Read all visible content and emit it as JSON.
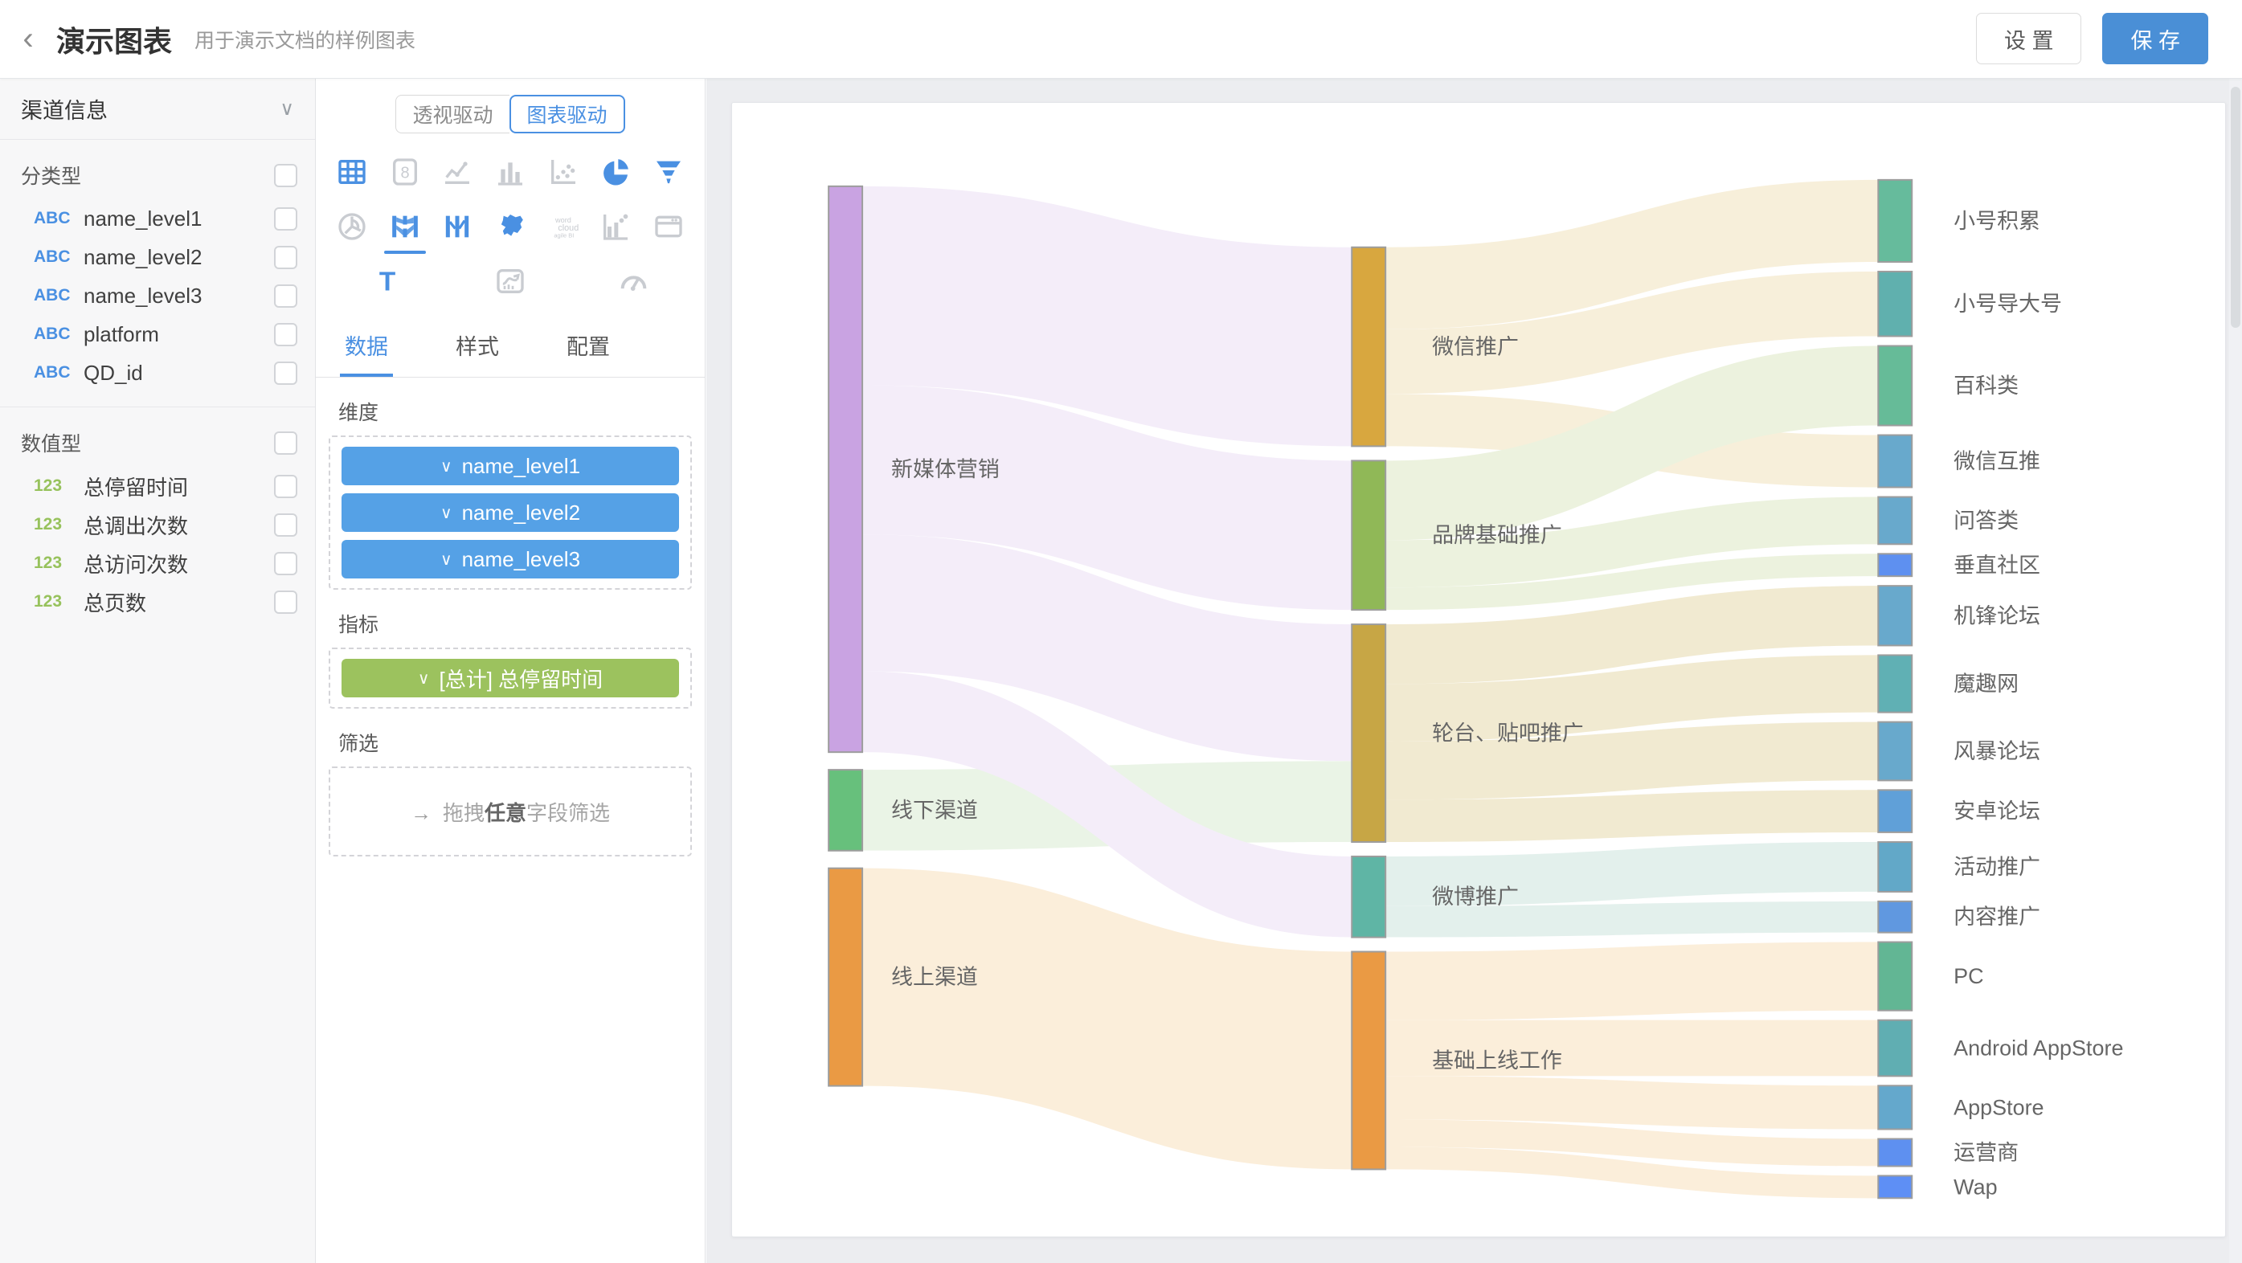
{
  "header": {
    "title": "演示图表",
    "subtitle": "用于演示文档的样例图表",
    "settings_label": "设 置",
    "save_label": "保 存"
  },
  "sidebar": {
    "dataset_name": "渠道信息",
    "sections": [
      {
        "label": "分类型",
        "badge": "ABC",
        "badge_color": "#4a90e2",
        "fields": [
          "name_level1",
          "name_level2",
          "name_level3",
          "platform",
          "QD_id"
        ]
      },
      {
        "label": "数值型",
        "badge": "123",
        "badge_color": "#97c25c",
        "fields": [
          "总停留时间",
          "总调出次数",
          "总访问次数",
          "总页数"
        ]
      }
    ]
  },
  "panel": {
    "mode_toggle": [
      "透视驱动",
      "图表驱动"
    ],
    "active_mode": "图表驱动",
    "chart_icons": [
      {
        "name": "table-icon",
        "active": true
      },
      {
        "name": "kpi-card-icon",
        "active": false
      },
      {
        "name": "line-chart-icon",
        "active": false
      },
      {
        "name": "bar-chart-icon",
        "active": false
      },
      {
        "name": "scatter-icon",
        "active": false
      },
      {
        "name": "pie-chart-icon",
        "active": true
      },
      {
        "name": "funnel-icon",
        "active": true
      },
      {
        "name": "rose-chart-icon",
        "active": false
      },
      {
        "name": "sankey-icon",
        "active": true,
        "selected": true
      },
      {
        "name": "parallel-icon",
        "active": true
      },
      {
        "name": "china-map-icon",
        "active": true
      },
      {
        "name": "word-cloud-icon",
        "active": false
      },
      {
        "name": "combo-chart-icon",
        "active": false
      },
      {
        "name": "web-frame-icon",
        "active": false
      },
      {
        "name": "text-icon",
        "active": true
      },
      {
        "name": "trend-card-icon",
        "active": false
      },
      {
        "name": "gauge-icon",
        "active": false
      }
    ],
    "tabs": [
      "数据",
      "样式",
      "配置"
    ],
    "active_tab": "数据",
    "dimensions": {
      "label": "维度",
      "chips": [
        "name_level1",
        "name_level2",
        "name_level3"
      ]
    },
    "metrics": {
      "label": "指标",
      "chips": [
        "[总计] 总停留时间"
      ]
    },
    "filter": {
      "label": "筛选",
      "arrow": "→",
      "prefix": "拖拽",
      "bold": "任意",
      "suffix": "字段筛选"
    }
  },
  "chart_data": {
    "type": "sankey",
    "metric": "[总计] 总停留时间",
    "levels": [
      "name_level1",
      "name_level2",
      "name_level3"
    ],
    "nodes": [
      {
        "name": "新媒体营销",
        "col": 1,
        "value": 455,
        "color": "#c9a3e2",
        "flow": "#f4edf9"
      },
      {
        "name": "线下渠道",
        "col": 1,
        "value": 65,
        "color": "#67c07c",
        "flow": "#eaf4e6"
      },
      {
        "name": "线上渠道",
        "col": 1,
        "value": 175,
        "color": "#ea9a44",
        "flow": "#fbeeda"
      },
      {
        "name": "微信推广",
        "col": 2,
        "value": 160,
        "color": "#d8a73f",
        "flow": "#f7efda"
      },
      {
        "name": "品牌基础推广",
        "col": 2,
        "value": 120,
        "color": "#90b857",
        "flow": "#ecf2de"
      },
      {
        "name": "轮台、贴吧推广",
        "col": 2,
        "value": 175,
        "color": "#c7a645",
        "flow": "#f1ead1"
      },
      {
        "name": "微博推广",
        "col": 2,
        "value": 65,
        "color": "#5fb5a5",
        "flow": "#e3f0ec"
      },
      {
        "name": "基础上线工作",
        "col": 2,
        "value": 175,
        "color": "#ea9a44",
        "flow": "#fbeeda"
      },
      {
        "name": "小号积累",
        "col": 3,
        "value": 66,
        "color": "#66bb9c"
      },
      {
        "name": "小号导大号",
        "col": 3,
        "value": 52,
        "color": "#60b0ae"
      },
      {
        "name": "百科类",
        "col": 3,
        "value": 64,
        "color": "#66bb98"
      },
      {
        "name": "微信互推",
        "col": 3,
        "value": 42,
        "color": "#68a9cc"
      },
      {
        "name": "问答类",
        "col": 3,
        "value": 38,
        "color": "#68a9cc"
      },
      {
        "name": "垂直社区",
        "col": 3,
        "value": 18,
        "color": "#5e90f0"
      },
      {
        "name": "机锋论坛",
        "col": 3,
        "value": 48,
        "color": "#68a9cc"
      },
      {
        "name": "魔趣网",
        "col": 3,
        "value": 46,
        "color": "#60b0b4"
      },
      {
        "name": "风暴论坛",
        "col": 3,
        "value": 47,
        "color": "#68a9cc"
      },
      {
        "name": "安卓论坛",
        "col": 3,
        "value": 34,
        "color": "#60a0d8"
      },
      {
        "name": "活动推广",
        "col": 3,
        "value": 40,
        "color": "#62a8c8"
      },
      {
        "name": "内容推广",
        "col": 3,
        "value": 25,
        "color": "#6098e0"
      },
      {
        "name": "PC",
        "col": 3,
        "value": 55,
        "color": "#62b694"
      },
      {
        "name": "Android AppStore",
        "col": 3,
        "value": 45,
        "color": "#60aeb2"
      },
      {
        "name": "AppStore",
        "col": 3,
        "value": 35,
        "color": "#64a8cc"
      },
      {
        "name": "运营商",
        "col": 3,
        "value": 22,
        "color": "#5e90f0"
      },
      {
        "name": "Wap",
        "col": 3,
        "value": 18,
        "color": "#5e8ff5"
      }
    ],
    "links": [
      {
        "source": "新媒体营销",
        "target": "微信推广",
        "value": 160
      },
      {
        "source": "新媒体营销",
        "target": "品牌基础推广",
        "value": 120
      },
      {
        "source": "新媒体营销",
        "target": "轮台、贴吧推广",
        "value": 110
      },
      {
        "source": "线下渠道",
        "target": "轮台、贴吧推广",
        "value": 65
      },
      {
        "source": "新媒体营销",
        "target": "微博推广",
        "value": 65
      },
      {
        "source": "线上渠道",
        "target": "基础上线工作",
        "value": 175
      },
      {
        "source": "微信推广",
        "target": "小号积累",
        "value": 66
      },
      {
        "source": "微信推广",
        "target": "小号导大号",
        "value": 52
      },
      {
        "source": "微信推广",
        "target": "微信互推",
        "value": 42
      },
      {
        "source": "品牌基础推广",
        "target": "百科类",
        "value": 64
      },
      {
        "source": "品牌基础推广",
        "target": "问答类",
        "value": 38
      },
      {
        "source": "品牌基础推广",
        "target": "垂直社区",
        "value": 18
      },
      {
        "source": "轮台、贴吧推广",
        "target": "机锋论坛",
        "value": 48
      },
      {
        "source": "轮台、贴吧推广",
        "target": "魔趣网",
        "value": 46
      },
      {
        "source": "轮台、贴吧推广",
        "target": "风暴论坛",
        "value": 47
      },
      {
        "source": "轮台、贴吧推广",
        "target": "安卓论坛",
        "value": 34
      },
      {
        "source": "微博推广",
        "target": "活动推广",
        "value": 40
      },
      {
        "source": "微博推广",
        "target": "内容推广",
        "value": 25
      },
      {
        "source": "基础上线工作",
        "target": "PC",
        "value": 55
      },
      {
        "source": "基础上线工作",
        "target": "Android AppStore",
        "value": 45
      },
      {
        "source": "基础上线工作",
        "target": "AppStore",
        "value": 35
      },
      {
        "source": "基础上线工作",
        "target": "运营商",
        "value": 22
      },
      {
        "source": "基础上线工作",
        "target": "Wap",
        "value": 18
      }
    ]
  }
}
